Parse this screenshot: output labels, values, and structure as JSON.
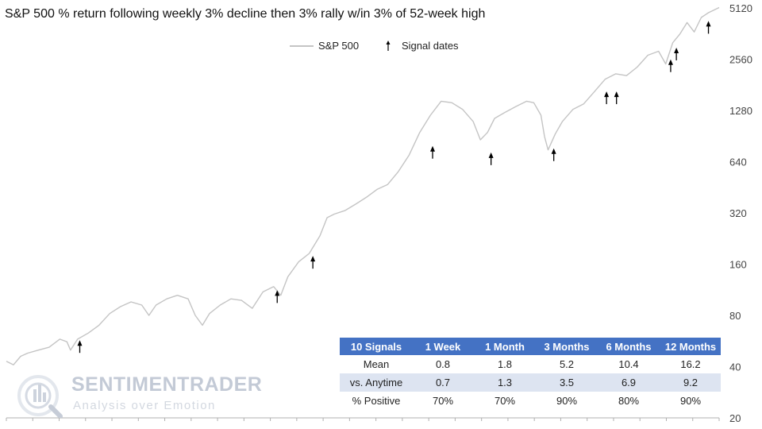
{
  "title": "S&P 500 % return following weekly 3% decline then 3% rally w/in 3% of 52-week high",
  "legend": {
    "series_label": "S&P 500",
    "signal_label": "Signal dates"
  },
  "colors": {
    "series": "#c4c4c4",
    "arrow": "#000000",
    "table_header": "#4472c4",
    "table_band": "#dde4f1"
  },
  "watermark": {
    "title": "SENTIMENTRADER",
    "subtitle": "Analysis over Emotion"
  },
  "stats_table": {
    "headers": [
      "10 Signals",
      "1 Week",
      "1 Month",
      "3 Months",
      "6 Months",
      "12 Months"
    ],
    "rows": [
      [
        "Mean",
        "0.8",
        "1.8",
        "5.2",
        "10.4",
        "16.2"
      ],
      [
        "vs. Anytime",
        "0.7",
        "1.3",
        "3.5",
        "6.9",
        "9.2"
      ],
      [
        "% Positive",
        "70%",
        "70%",
        "90%",
        "80%",
        "90%"
      ]
    ]
  },
  "chart_data": {
    "type": "line",
    "title": "S&P 500 % return following weekly 3% decline then 3% rally w/in 3% of 52-week high",
    "y_scale": "log",
    "ylim": [
      20,
      5120
    ],
    "yticks": [
      20,
      40,
      80,
      160,
      320,
      640,
      1280,
      2560,
      5120
    ],
    "grid": false,
    "legend_position": "top-center",
    "series": [
      {
        "name": "S&P 500",
        "points": [
          [
            0.0,
            43
          ],
          [
            0.01,
            41
          ],
          [
            0.02,
            46
          ],
          [
            0.03,
            48
          ],
          [
            0.045,
            50
          ],
          [
            0.06,
            52
          ],
          [
            0.075,
            58
          ],
          [
            0.085,
            56
          ],
          [
            0.09,
            50
          ],
          [
            0.1,
            58
          ],
          [
            0.115,
            63
          ],
          [
            0.13,
            70
          ],
          [
            0.145,
            82
          ],
          [
            0.16,
            90
          ],
          [
            0.175,
            96
          ],
          [
            0.19,
            92
          ],
          [
            0.2,
            80
          ],
          [
            0.21,
            92
          ],
          [
            0.225,
            100
          ],
          [
            0.24,
            105
          ],
          [
            0.255,
            100
          ],
          [
            0.265,
            80
          ],
          [
            0.275,
            70
          ],
          [
            0.285,
            82
          ],
          [
            0.3,
            92
          ],
          [
            0.315,
            100
          ],
          [
            0.33,
            98
          ],
          [
            0.345,
            88
          ],
          [
            0.36,
            110
          ],
          [
            0.375,
            118
          ],
          [
            0.385,
            105
          ],
          [
            0.395,
            135
          ],
          [
            0.41,
            165
          ],
          [
            0.425,
            185
          ],
          [
            0.44,
            235
          ],
          [
            0.45,
            300
          ],
          [
            0.46,
            315
          ],
          [
            0.475,
            330
          ],
          [
            0.49,
            360
          ],
          [
            0.505,
            395
          ],
          [
            0.52,
            440
          ],
          [
            0.535,
            470
          ],
          [
            0.55,
            560
          ],
          [
            0.565,
            700
          ],
          [
            0.58,
            950
          ],
          [
            0.595,
            1200
          ],
          [
            0.61,
            1450
          ],
          [
            0.625,
            1420
          ],
          [
            0.64,
            1300
          ],
          [
            0.655,
            1100
          ],
          [
            0.665,
            860
          ],
          [
            0.675,
            950
          ],
          [
            0.685,
            1150
          ],
          [
            0.7,
            1250
          ],
          [
            0.715,
            1350
          ],
          [
            0.73,
            1450
          ],
          [
            0.74,
            1420
          ],
          [
            0.75,
            1200
          ],
          [
            0.755,
            900
          ],
          [
            0.76,
            750
          ],
          [
            0.77,
            930
          ],
          [
            0.78,
            1100
          ],
          [
            0.795,
            1300
          ],
          [
            0.81,
            1400
          ],
          [
            0.825,
            1650
          ],
          [
            0.84,
            1950
          ],
          [
            0.855,
            2100
          ],
          [
            0.87,
            2050
          ],
          [
            0.885,
            2300
          ],
          [
            0.9,
            2700
          ],
          [
            0.915,
            2850
          ],
          [
            0.925,
            2400
          ],
          [
            0.935,
            3200
          ],
          [
            0.945,
            3600
          ],
          [
            0.955,
            4200
          ],
          [
            0.965,
            3700
          ],
          [
            0.975,
            4500
          ],
          [
            0.985,
            4800
          ],
          [
            1.0,
            5150
          ]
        ]
      }
    ],
    "signals": [
      {
        "t": 0.103,
        "value": 56
      },
      {
        "t": 0.38,
        "value": 110
      },
      {
        "t": 0.43,
        "value": 175
      },
      {
        "t": 0.598,
        "value": 775
      },
      {
        "t": 0.68,
        "value": 710
      },
      {
        "t": 0.768,
        "value": 750
      },
      {
        "t": 0.842,
        "value": 1620
      },
      {
        "t": 0.856,
        "value": 1620
      },
      {
        "t": 0.932,
        "value": 2500
      },
      {
        "t": 0.94,
        "value": 2930
      },
      {
        "t": 0.985,
        "value": 4200
      }
    ]
  }
}
